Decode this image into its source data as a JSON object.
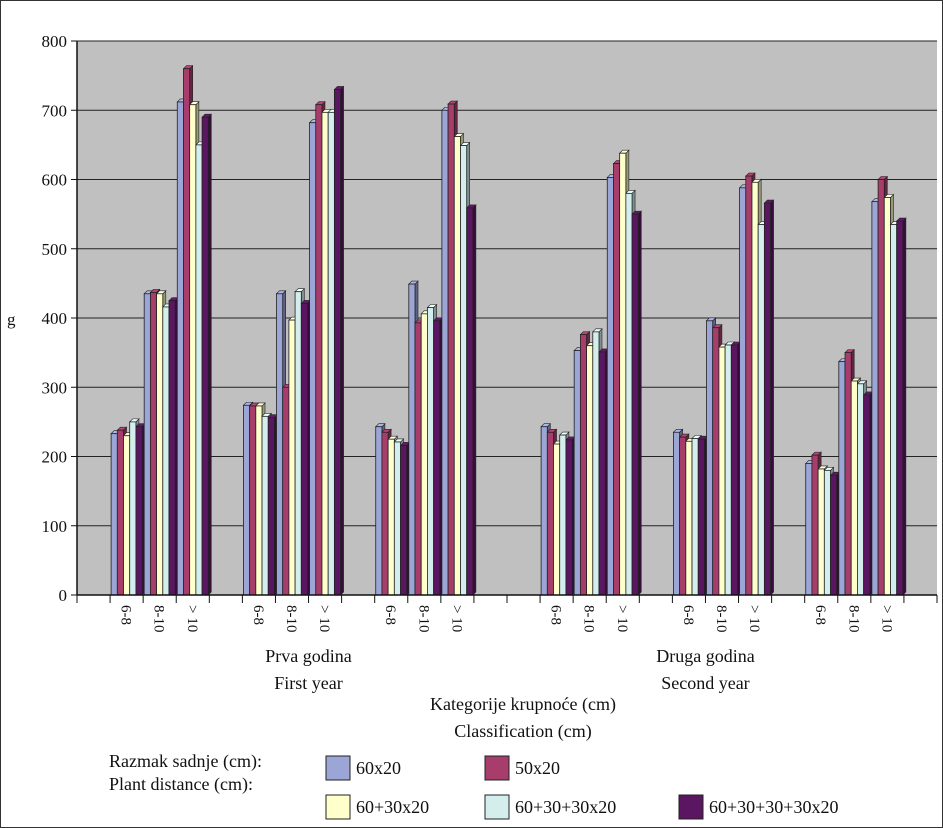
{
  "chart_data": {
    "type": "bar",
    "ylabel": "g",
    "ylim": [
      0,
      800
    ],
    "yticks": [
      0,
      100,
      200,
      300,
      400,
      500,
      600,
      700,
      800
    ],
    "grid": true,
    "legend_placement": "bottom",
    "xlabel": [
      "Kategorije krupnoće (cm)",
      "Classification (cm)"
    ],
    "groups": [
      {
        "name": [
          "Prva godina",
          "First year"
        ],
        "subgroups": [
          {
            "categories": [
              "6-8",
              "8-10",
              "> 10"
            ]
          },
          {
            "categories": [
              "6-8",
              "8-10",
              "> 10"
            ]
          },
          {
            "categories": [
              "6-8",
              "8-10",
              "> 10"
            ]
          }
        ]
      },
      {
        "name": [
          "Druga godina",
          "Second year"
        ],
        "subgroups": [
          {
            "categories": [
              "6-8",
              "8-10",
              "> 10"
            ]
          },
          {
            "categories": [
              "6-8",
              "8-10",
              "> 10"
            ]
          },
          {
            "categories": [
              "6-8",
              "8-10",
              "> 10"
            ]
          }
        ]
      }
    ],
    "categories": [
      "6-8",
      "8-10",
      "> 10",
      "6-8",
      "8-10",
      "> 10",
      "6-8",
      "8-10",
      "> 10",
      "6-8",
      "8-10",
      "> 10",
      "6-8",
      "8-10",
      "> 10",
      "6-8",
      "8-10",
      "> 10"
    ],
    "legend_title": [
      "Razmak sadnje (cm):",
      "Plant distance (cm):"
    ],
    "series": [
      {
        "name": "60x20",
        "color": "#9ba5d6",
        "values": [
          233,
          435,
          712,
          274,
          435,
          682,
          243,
          449,
          700,
          243,
          353,
          603,
          235,
          396,
          588,
          190,
          337,
          568
        ]
      },
      {
        "name": "50x20",
        "color": "#a73d6a",
        "values": [
          238,
          437,
          760,
          273,
          300,
          708,
          235,
          393,
          709,
          235,
          376,
          623,
          228,
          386,
          605,
          202,
          350,
          600
        ]
      },
      {
        "name": "60+30x20",
        "color": "#ffffcc",
        "values": [
          230,
          435,
          708,
          273,
          397,
          697,
          225,
          406,
          662,
          218,
          360,
          638,
          222,
          358,
          596,
          182,
          309,
          574
        ]
      },
      {
        "name": "60+30+30x20",
        "color": "#d4eeee",
        "values": [
          250,
          416,
          650,
          258,
          438,
          697,
          221,
          415,
          649,
          231,
          380,
          580,
          226,
          361,
          535,
          180,
          305,
          535
        ]
      },
      {
        "name": "60+30+30+30x20",
        "color": "#5a1660",
        "values": [
          243,
          425,
          690,
          256,
          421,
          730,
          216,
          396,
          559,
          224,
          351,
          550,
          225,
          361,
          566,
          173,
          289,
          540
        ]
      }
    ]
  }
}
